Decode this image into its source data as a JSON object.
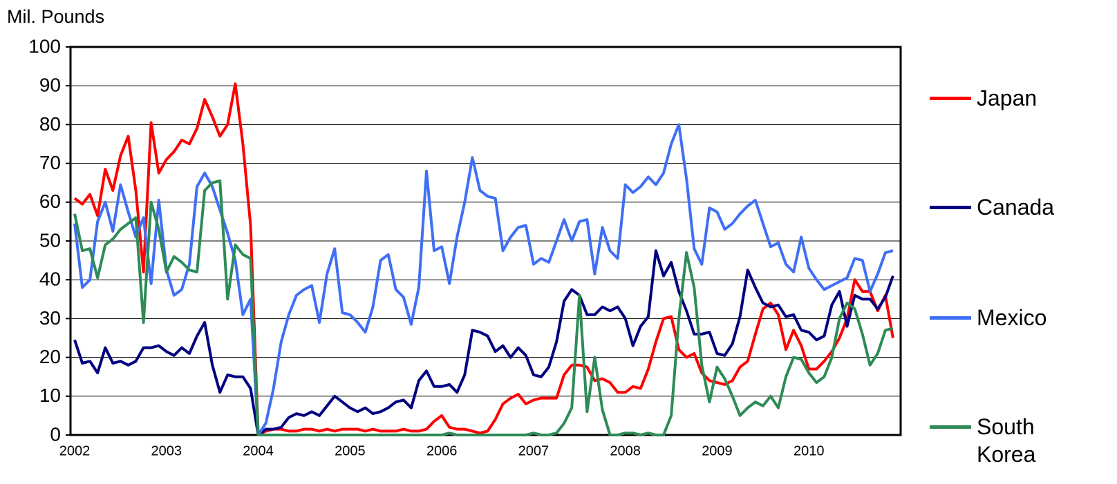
{
  "chart_data": {
    "type": "line",
    "y_label": "Mil. Pounds",
    "categories": [
      "2002",
      null,
      null,
      null,
      null,
      null,
      null,
      null,
      null,
      null,
      null,
      null,
      "2003",
      null,
      null,
      null,
      null,
      null,
      null,
      null,
      null,
      null,
      null,
      null,
      "2004",
      null,
      null,
      null,
      null,
      null,
      null,
      null,
      null,
      null,
      null,
      null,
      "2005",
      null,
      null,
      null,
      null,
      null,
      null,
      null,
      null,
      null,
      null,
      null,
      "2006",
      null,
      null,
      null,
      null,
      null,
      null,
      null,
      null,
      null,
      null,
      null,
      "2007",
      null,
      null,
      null,
      null,
      null,
      null,
      null,
      null,
      null,
      null,
      null,
      "2008",
      null,
      null,
      null,
      null,
      null,
      null,
      null,
      null,
      null,
      null,
      null,
      "2009",
      null,
      null,
      null,
      null,
      null,
      null,
      null,
      null,
      null,
      null,
      null,
      "2010",
      null,
      null,
      null,
      null,
      null,
      null,
      null,
      null,
      null,
      null,
      null
    ],
    "ylim": [
      0,
      100
    ],
    "yticks": [
      0,
      10,
      20,
      30,
      40,
      50,
      60,
      70,
      80,
      90,
      100
    ],
    "grid": true,
    "legend": "right",
    "series": [
      {
        "name": "Japan",
        "color": "#ff0000",
        "values": [
          61,
          59.5,
          62,
          56.5,
          68.5,
          63,
          72,
          77,
          63,
          42,
          80.5,
          67.5,
          71,
          73,
          76,
          75,
          79,
          86.5,
          82,
          77,
          80,
          90.5,
          75,
          54,
          0,
          1,
          1.5,
          1.5,
          1,
          1,
          1.5,
          1.5,
          1,
          1.5,
          1,
          1.5,
          1.5,
          1.5,
          1,
          1.5,
          1,
          1,
          1,
          1.5,
          1,
          1,
          1.5,
          3.5,
          5,
          2,
          1.5,
          1.5,
          1,
          0.5,
          1,
          4,
          8,
          9.5,
          10.5,
          8,
          9,
          9.5,
          9.5,
          9.5,
          15.5,
          18,
          18,
          17.5,
          14,
          14.5,
          13.5,
          11,
          11,
          12.5,
          12,
          17,
          24,
          30,
          30.5,
          22,
          20,
          21,
          16,
          14,
          13.5,
          13,
          14,
          17.5,
          19,
          26,
          32.5,
          34,
          31,
          22,
          27,
          23,
          17,
          17,
          19,
          21.5,
          25,
          30,
          40,
          37,
          37,
          32,
          36,
          25
        ]
      },
      {
        "name": "Canada",
        "color": "#000080",
        "values": [
          24.5,
          18.5,
          19,
          16,
          22.5,
          18.5,
          19,
          18,
          19,
          22.5,
          22.5,
          23,
          21.5,
          20.5,
          22.5,
          21,
          25.5,
          29,
          18,
          11,
          15.5,
          15,
          15,
          12,
          0,
          1.5,
          1.5,
          2,
          4.5,
          5.5,
          5,
          6,
          5,
          7.5,
          10,
          8.5,
          7,
          6,
          7,
          5.5,
          6,
          7,
          8.5,
          9,
          7,
          14,
          16.5,
          12.5,
          12.5,
          13,
          11,
          15.5,
          27,
          26.5,
          25.5,
          21.5,
          23,
          20,
          22.5,
          20.5,
          15.5,
          15,
          17.5,
          24,
          34.5,
          37.5,
          36,
          31,
          31,
          33,
          32,
          33,
          30,
          23,
          28,
          30.5,
          47.5,
          41,
          44.5,
          37,
          32,
          26,
          26,
          26.5,
          21,
          20.5,
          23.5,
          30.5,
          42.5,
          38,
          34,
          33,
          33.5,
          30.5,
          31,
          27,
          26.5,
          24.5,
          25.5,
          33.5,
          37,
          28,
          36,
          35,
          35,
          32.5,
          35.5,
          41
        ]
      },
      {
        "name": "Mexico",
        "color": "#3f6ff5",
        "values": [
          54.5,
          38,
          40,
          55,
          60,
          52.5,
          64.5,
          57.5,
          51,
          56,
          39,
          60.5,
          42.5,
          36,
          37.5,
          44,
          64,
          67.5,
          64,
          58,
          52,
          45,
          31,
          35,
          0,
          3,
          12,
          24,
          31,
          36,
          37.5,
          38.5,
          29,
          41.5,
          48,
          31.5,
          31,
          29,
          26.5,
          33,
          45,
          46.5,
          37.5,
          35.5,
          28.5,
          38,
          68,
          47.5,
          48.5,
          39,
          51,
          60,
          71.5,
          63,
          61.5,
          61,
          47.5,
          51,
          53.5,
          54,
          44,
          45.5,
          44.5,
          50,
          55.5,
          50,
          55,
          55.5,
          41.5,
          53.5,
          47.5,
          45.5,
          64.5,
          62.5,
          64,
          66.5,
          64.5,
          67.5,
          75,
          80,
          66,
          48,
          44,
          58.5,
          57.5,
          53,
          54.5,
          57,
          59,
          60.5,
          54.5,
          48.5,
          49.5,
          44,
          42,
          51,
          43,
          40,
          37.5,
          38.5,
          39.5,
          40.5,
          45.5,
          45,
          37,
          41.5,
          47,
          47.5
        ]
      },
      {
        "name": "South Korea",
        "color": "#2e8b57",
        "values": [
          57,
          47.5,
          48,
          40.5,
          49,
          50.5,
          53,
          54.5,
          56,
          29,
          60,
          53,
          42,
          46,
          44.5,
          42.5,
          42,
          63,
          65,
          65.5,
          35,
          49,
          46.5,
          45.5,
          0,
          0,
          0,
          0,
          0,
          0,
          0,
          0,
          0,
          0,
          0,
          0,
          0,
          0,
          0,
          0,
          0,
          0,
          0,
          0,
          0,
          0,
          0,
          0,
          0,
          0.5,
          0,
          0,
          0,
          0,
          0,
          0,
          0,
          0,
          0,
          0,
          0.5,
          0,
          0,
          0.5,
          3,
          7,
          36,
          6,
          20,
          6.5,
          0,
          0,
          0.5,
          0.5,
          0,
          0.5,
          0,
          0,
          5,
          30,
          47,
          38,
          18,
          8.5,
          17.5,
          14.5,
          10,
          5,
          7,
          8.5,
          7.5,
          10,
          7,
          15,
          20,
          19.5,
          16,
          13.5,
          15,
          20,
          30,
          34,
          32.5,
          26,
          18,
          21,
          27,
          27.5
        ]
      }
    ]
  }
}
